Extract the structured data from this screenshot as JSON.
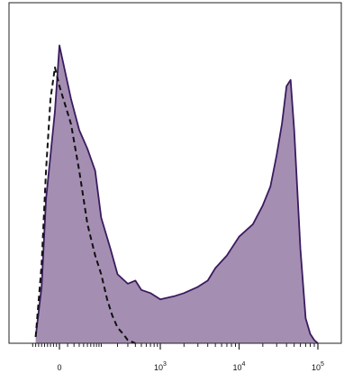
{
  "chart_data": {
    "type": "area",
    "title": "",
    "xlabel": "",
    "ylabel": "",
    "x_scale": "biexponential",
    "x_ticks": [
      {
        "value": 0,
        "base": "0",
        "exp": ""
      },
      {
        "value": 1000,
        "base": "10",
        "exp": "3"
      },
      {
        "value": 10000,
        "base": "10",
        "exp": "4"
      },
      {
        "value": 100000,
        "base": "10",
        "exp": "5"
      }
    ],
    "y_range": [
      0,
      100
    ],
    "grid": false,
    "legend": "none",
    "series": [
      {
        "style": "filled",
        "fill": "#a48fb3",
        "stroke": "#3a1b5e",
        "x": [
          -80,
          -60,
          -45,
          -30,
          -15,
          0,
          15,
          30,
          50,
          75,
          100,
          150,
          200,
          300,
          400,
          500,
          700,
          1000,
          1500,
          2000,
          3000,
          4000,
          5000,
          7000,
          10000,
          15000,
          20000,
          25000,
          30000,
          35000,
          40000,
          45000,
          50000,
          60000,
          70000,
          80000,
          90000,
          100000
        ],
        "values": [
          2,
          18,
          46,
          60,
          74,
          95,
          78,
          68,
          62,
          55,
          40,
          30,
          22,
          19,
          20,
          17,
          16,
          14,
          15,
          16,
          18,
          20,
          24,
          28,
          34,
          38,
          44,
          50,
          60,
          70,
          82,
          84,
          68,
          30,
          8,
          3,
          1,
          0
        ]
      },
      {
        "style": "dashed",
        "fill": "none",
        "stroke": "#111111",
        "x": [
          -80,
          -60,
          -45,
          -30,
          -15,
          0,
          15,
          30,
          50,
          75,
          100,
          130,
          160,
          200,
          250,
          300,
          350,
          400
        ],
        "values": [
          2,
          25,
          55,
          78,
          88,
          82,
          70,
          55,
          38,
          28,
          22,
          14,
          9,
          5,
          3,
          1,
          0.5,
          0
        ]
      }
    ]
  }
}
